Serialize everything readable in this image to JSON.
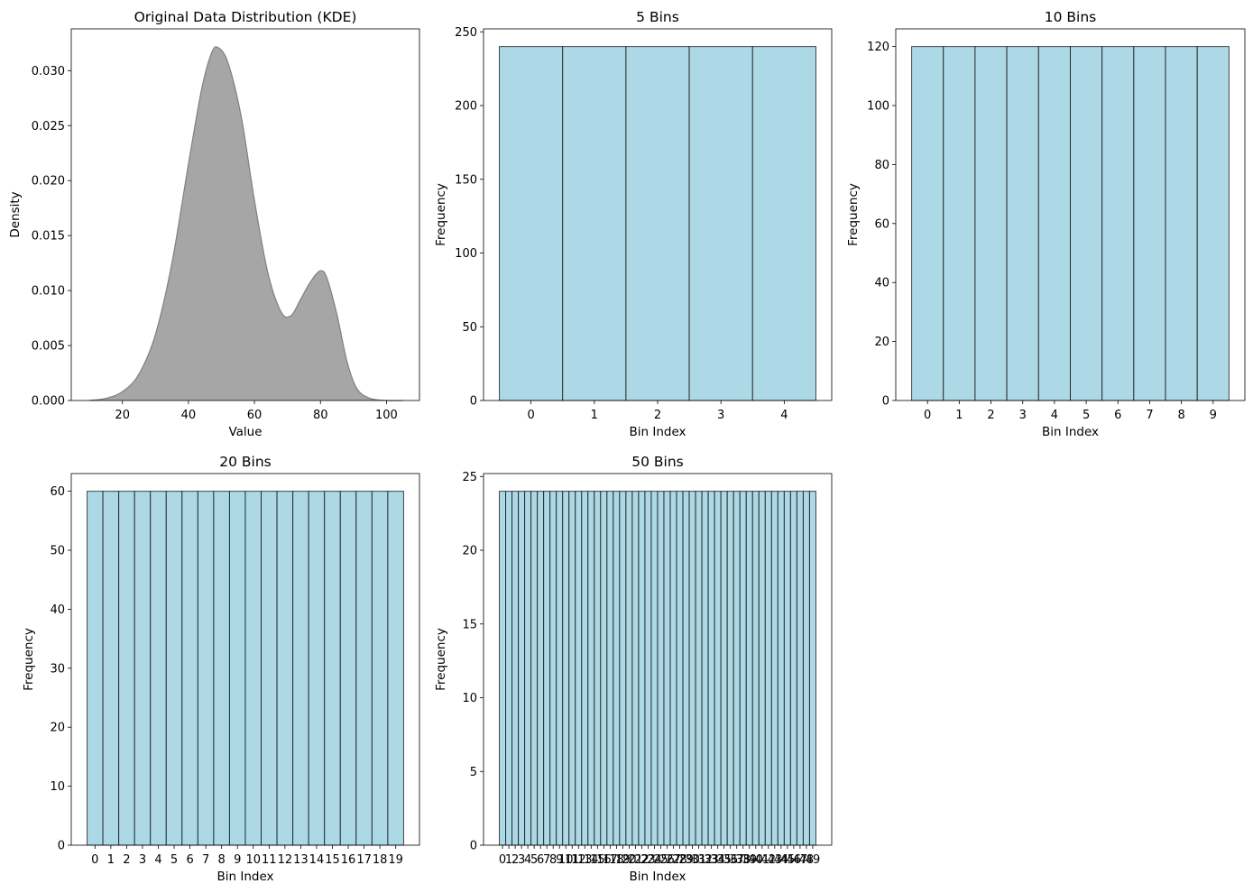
{
  "colors": {
    "kde_fill": "#a6a6a6",
    "kde_line": "#7f7f7f",
    "bar_fill": "#add8e6",
    "bar_edge": "#000000"
  },
  "chart_data": [
    {
      "type": "area",
      "title": "Original Data Distribution (KDE)",
      "xlabel": "Value",
      "ylabel": "Density",
      "xlim": [
        4.5,
        110
      ],
      "ylim": [
        0,
        0.0338
      ],
      "xticks": [
        20,
        40,
        60,
        80,
        100
      ],
      "yticks": [
        0.0,
        0.005,
        0.01,
        0.015,
        0.02,
        0.025,
        0.03
      ],
      "ytick_labels": [
        "0.000",
        "0.005",
        "0.010",
        "0.015",
        "0.020",
        "0.025",
        "0.030"
      ],
      "x": [
        10,
        15,
        20,
        25,
        30,
        35,
        40,
        44,
        47,
        49,
        52,
        56,
        60,
        64,
        68,
        71,
        74,
        77,
        80,
        82,
        85,
        88,
        91,
        95,
        100,
        105
      ],
      "y": [
        0.0,
        0.0002,
        0.0008,
        0.0024,
        0.006,
        0.0125,
        0.0215,
        0.0283,
        0.0316,
        0.0321,
        0.0307,
        0.0258,
        0.0182,
        0.0117,
        0.0081,
        0.0077,
        0.0092,
        0.0108,
        0.0118,
        0.0111,
        0.0078,
        0.0036,
        0.0011,
        0.0002,
        0.0,
        0.0
      ]
    },
    {
      "type": "bar",
      "title": "5 Bins",
      "xlabel": "Bin Index",
      "ylabel": "Frequency",
      "ylim": [
        0,
        252
      ],
      "yticks": [
        0,
        50,
        100,
        150,
        200,
        250
      ],
      "categories": [
        "0",
        "1",
        "2",
        "3",
        "4"
      ],
      "values": [
        240,
        240,
        240,
        240,
        240
      ]
    },
    {
      "type": "bar",
      "title": "10 Bins",
      "xlabel": "Bin Index",
      "ylabel": "Frequency",
      "ylim": [
        0,
        126
      ],
      "yticks": [
        0,
        20,
        40,
        60,
        80,
        100,
        120
      ],
      "categories": [
        "0",
        "1",
        "2",
        "3",
        "4",
        "5",
        "6",
        "7",
        "8",
        "9"
      ],
      "values": [
        120,
        120,
        120,
        120,
        120,
        120,
        120,
        120,
        120,
        120
      ]
    },
    {
      "type": "bar",
      "title": "20 Bins",
      "xlabel": "Bin Index",
      "ylabel": "Frequency",
      "ylim": [
        0,
        63
      ],
      "yticks": [
        0,
        10,
        20,
        30,
        40,
        50,
        60
      ],
      "categories": [
        "0",
        "1",
        "2",
        "3",
        "4",
        "5",
        "6",
        "7",
        "8",
        "9",
        "10",
        "11",
        "12",
        "13",
        "14",
        "15",
        "16",
        "17",
        "18",
        "19"
      ],
      "values": [
        60,
        60,
        60,
        60,
        60,
        60,
        60,
        60,
        60,
        60,
        60,
        60,
        60,
        60,
        60,
        60,
        60,
        60,
        60,
        60
      ]
    },
    {
      "type": "bar",
      "title": "50 Bins",
      "xlabel": "Bin Index",
      "ylabel": "Frequency",
      "ylim": [
        0,
        25.2
      ],
      "yticks": [
        0,
        5,
        10,
        15,
        20,
        25
      ],
      "categories": [
        "0",
        "1",
        "2",
        "3",
        "4",
        "5",
        "6",
        "7",
        "8",
        "9",
        "10",
        "11",
        "12",
        "13",
        "14",
        "15",
        "16",
        "17",
        "18",
        "19",
        "20",
        "21",
        "22",
        "23",
        "24",
        "25",
        "26",
        "27",
        "28",
        "29",
        "30",
        "31",
        "32",
        "33",
        "34",
        "35",
        "36",
        "37",
        "38",
        "39",
        "40",
        "41",
        "42",
        "43",
        "44",
        "45",
        "46",
        "47",
        "48",
        "49"
      ],
      "values": [
        24,
        24,
        24,
        24,
        24,
        24,
        24,
        24,
        24,
        24,
        24,
        24,
        24,
        24,
        24,
        24,
        24,
        24,
        24,
        24,
        24,
        24,
        24,
        24,
        24,
        24,
        24,
        24,
        24,
        24,
        24,
        24,
        24,
        24,
        24,
        24,
        24,
        24,
        24,
        24,
        24,
        24,
        24,
        24,
        24,
        24,
        24,
        24,
        24,
        24
      ]
    }
  ]
}
